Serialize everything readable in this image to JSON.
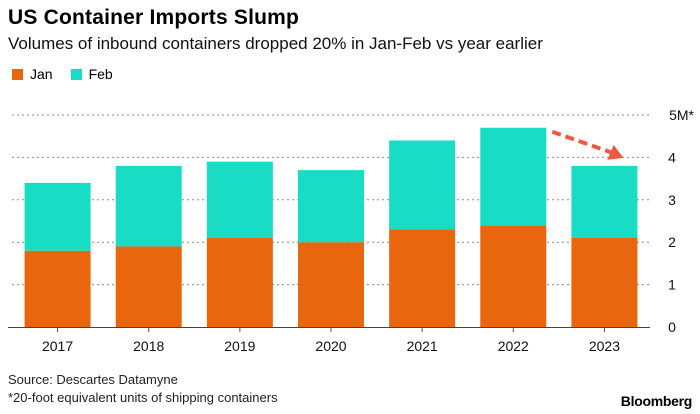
{
  "chart_data": {
    "type": "bar",
    "stacked": true,
    "title": "US Container Imports Slump",
    "subtitle": "Volumes of inbound containers dropped 20% in Jan-Feb vs year earlier",
    "categories": [
      "2017",
      "2018",
      "2019",
      "2020",
      "2021",
      "2022",
      "2023"
    ],
    "series": [
      {
        "name": "Jan",
        "color": "#e8670e",
        "values": [
          1.8,
          1.9,
          2.1,
          2.0,
          2.3,
          2.4,
          2.1
        ]
      },
      {
        "name": "Feb",
        "color": "#18dcc3",
        "values": [
          1.6,
          1.9,
          1.8,
          1.7,
          2.1,
          2.3,
          1.7
        ]
      }
    ],
    "ylim": [
      0,
      5
    ],
    "yticks": [
      "0",
      "1",
      "2",
      "3",
      "4",
      "5M*"
    ],
    "y_axis_side": "right",
    "grid": true,
    "legend": "top-left",
    "annotation": {
      "type": "dashed-arrow",
      "color": "#f0593d",
      "from": "2022",
      "to": "2023"
    }
  },
  "source": "Source: Descartes Datamyne",
  "footnote": "*20-foot equivalent units of shipping containers",
  "brand": "Bloomberg"
}
